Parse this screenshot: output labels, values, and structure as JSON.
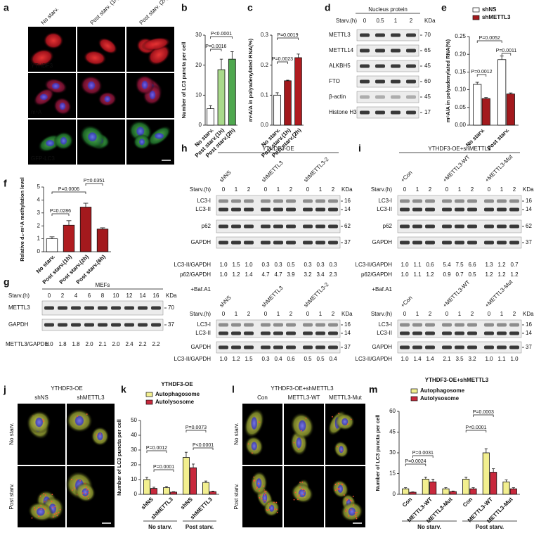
{
  "panel_labels": [
    "a",
    "b",
    "c",
    "d",
    "e",
    "f",
    "g",
    "h",
    "i",
    "j",
    "k",
    "l",
    "m"
  ],
  "panel_a": {
    "columns": [
      "No starv.",
      "Post starv. (1h)",
      "Post starv. (2h)"
    ],
    "rows": [
      "YTHDF3",
      "m⁶A",
      "GFP-LC3"
    ]
  },
  "chart_data": [
    {
      "type": "bar",
      "y_label": "Number of LC3 puncta per cell",
      "categories": [
        "No starv.",
        "Post starv.(1h)",
        "Post starv.(2h)"
      ],
      "series": [
        {
          "values": [
            5.5,
            18.5,
            22
          ],
          "errors": [
            1,
            3.5,
            2.5
          ],
          "colors": [
            "#ffffff",
            "#a9d98b",
            "#4fa84f"
          ]
        }
      ],
      "ylim": [
        0,
        30
      ],
      "yticks": [
        0,
        10,
        20,
        30
      ],
      "annotations": [
        "P=0.0016",
        "P<0.0001"
      ]
    },
    {
      "type": "bar",
      "y_label": "m⁶A/A in polyadenylated RNA(%)",
      "categories": [
        "No starv.",
        "Post starv.(1h)",
        "Post starv.(2h)"
      ],
      "series": [
        {
          "values": [
            0.1,
            0.148,
            0.225
          ],
          "errors": [
            0.008,
            0.002,
            0.012
          ],
          "colors": [
            "#ffffff",
            "#a3191d",
            "#b01c20"
          ]
        }
      ],
      "ylim": [
        0,
        0.3
      ],
      "yticks": [
        {
          "value": 0,
          "label": "0.0"
        },
        0.1,
        0.2,
        0.3
      ],
      "annotations": [
        "P=0.0023",
        "P=0.0019"
      ]
    },
    {
      "type": "bar",
      "y_label": "m⁶A/A in polyadenylated RNA(%)",
      "categories": [
        "No starv.",
        "Post starv."
      ],
      "series": [
        {
          "name": "shNS",
          "color": "#ffffff",
          "values": [
            0.115,
            0.185
          ],
          "errors": [
            0.006,
            0.01
          ]
        },
        {
          "name": "shMETTL3",
          "color": "#a3191d",
          "values": [
            0.075,
            0.088
          ],
          "errors": [
            0.003,
            0.003
          ]
        }
      ],
      "ylim": [
        0,
        0.25
      ],
      "yticks": [
        {
          "value": 0,
          "label": "0.00"
        },
        0.05,
        {
          "value": 0.1,
          "label": "0.10"
        },
        0.15,
        {
          "value": 0.2,
          "label": "0.20"
        },
        0.25
      ],
      "annotations": [
        "P=0.0012",
        "P=0.0052",
        "P=0.0011"
      ]
    },
    {
      "type": "bar",
      "y_label": "Relative d₃-m⁶A methylation level",
      "categories": [
        "No starv.",
        "Post starv.(1h)",
        "Post starv.(2h)",
        "Post starv.(6h)"
      ],
      "series": [
        {
          "values": [
            1.0,
            2.05,
            3.45,
            1.75
          ],
          "errors": [
            0.15,
            0.35,
            0.3,
            0.1
          ],
          "colors": [
            "#ffffff",
            "#b01c20",
            "#a3191d",
            "#a3191d"
          ]
        }
      ],
      "ylim": [
        0,
        5
      ],
      "yticks": [
        0,
        1,
        2,
        3,
        4,
        5
      ],
      "annotations": [
        "P=0.0286",
        "P=0.0006",
        "P=0.0351"
      ]
    },
    {
      "type": "bar",
      "title": "YTHDF3-OE",
      "y_label": "Number of LC3 puncta per cell",
      "categories": [
        "shNS",
        "shMETTL3",
        "shNS",
        "shMETTL3"
      ],
      "groups": [
        "No starv.",
        "Post starv."
      ],
      "series": [
        {
          "name": "Autophagosome",
          "color": "#f2ef8f",
          "values": [
            10,
            4.5,
            25,
            8
          ],
          "errors": [
            1.5,
            0.8,
            3.5,
            1
          ]
        },
        {
          "name": "Autolysosome",
          "color": "#c8283c",
          "values": [
            4,
            1.5,
            18,
            1.8
          ],
          "errors": [
            0.8,
            0.3,
            2.5,
            0.4
          ]
        }
      ],
      "ylim": [
        0,
        50
      ],
      "yticks": [
        0,
        10,
        20,
        30,
        40,
        50
      ],
      "annotations": [
        "P=0.0012",
        "P=0.0001",
        "P=0.0073",
        "P<0.0001"
      ]
    },
    {
      "type": "bar",
      "title": "YTHDF3-OE+shMETTL3",
      "y_label": "Number of LC3 puncta per cell",
      "categories": [
        "Con",
        "METTL3-WT",
        "METTL3-Mut",
        "Con",
        "METTL3-WT",
        "METTL3-Mut"
      ],
      "groups": [
        "No starv.",
        "Post starv."
      ],
      "series": [
        {
          "name": "Autophagosome",
          "color": "#f2ef8f",
          "values": [
            4,
            11,
            4,
            11,
            30,
            9
          ],
          "errors": [
            0.8,
            1.5,
            0.8,
            1.5,
            3,
            1.5
          ]
        },
        {
          "name": "Autolysosome",
          "color": "#c8283c",
          "values": [
            1.5,
            9,
            2,
            4,
            16,
            4
          ],
          "errors": [
            0.3,
            2,
            0.4,
            0.8,
            2.5,
            0.8
          ]
        }
      ],
      "ylim": [
        0,
        60
      ],
      "yticks": [
        0,
        15,
        30,
        45,
        60
      ],
      "annotations": [
        "P=0.0024",
        "P=0.0031",
        "P<0.0001",
        "P=0.0003"
      ]
    }
  ],
  "panel_d": {
    "title": "Nucleus protein",
    "lane_label": "Starv.(h)",
    "lanes": [
      "0",
      "0.5",
      "1",
      "2"
    ],
    "unit": "KDa",
    "rows": [
      {
        "name": "METTL3",
        "kda": "70"
      },
      {
        "name": "METTL14",
        "kda": "65"
      },
      {
        "name": "ALKBH5",
        "kda": "45"
      },
      {
        "name": "FTO",
        "kda": "60"
      },
      {
        "name": "β-actin",
        "kda": "45"
      },
      {
        "name": "Histone H3",
        "kda": "17"
      }
    ]
  },
  "panel_g": {
    "title": "MEFs",
    "lane_label": "Starv.(h)",
    "lanes": [
      "0",
      "2",
      "4",
      "6",
      "8",
      "10",
      "12",
      "14",
      "16"
    ],
    "unit": "KDa",
    "rows": [
      {
        "name": "METTL3",
        "kda": "70"
      },
      {
        "name": "GAPDH",
        "kda": "37"
      }
    ],
    "quant": [
      {
        "label": "METTL3/GAPDH",
        "values": [
          "1.0",
          "1.8",
          "1.8",
          "2.0",
          "2.1",
          "2.0",
          "2.4",
          "2.2",
          "2.2"
        ]
      }
    ]
  },
  "panel_h": {
    "title": "YTHDF3-OE",
    "groups": [
      "shNS",
      "shMETTL3",
      "shMETTL3-2"
    ],
    "lane_label": "Starv.(h)",
    "lanes": [
      "0",
      "1",
      "2"
    ],
    "unit": "KDa",
    "rows": [
      {
        "name": "LC3-I",
        "kda": "16"
      },
      {
        "name": "LC3-II",
        "kda": "14"
      },
      {
        "name": "p62",
        "kda": "62"
      },
      {
        "name": "GAPDH",
        "kda": "37"
      }
    ],
    "quant": [
      {
        "label": "LC3-II/GAPDH",
        "values": [
          "1.0",
          "1.5",
          "1.0",
          "0.3",
          "0.3",
          "0.5",
          "0.3",
          "0.3",
          "0.3"
        ]
      },
      {
        "label": "p62/GAPDH",
        "values": [
          "1.0",
          "1.2",
          "1.4",
          "4.7",
          "4.7",
          "3.9",
          "3.2",
          "3.4",
          "2.3"
        ]
      }
    ],
    "baf": {
      "label": "+Baf.A1",
      "rows": [
        {
          "name": "LC3-I",
          "kda": "16"
        },
        {
          "name": "LC3-II",
          "kda": "14"
        },
        {
          "name": "GAPDH",
          "kda": "37"
        }
      ],
      "quant": [
        {
          "label": "LC3-II/GAPDH",
          "values": [
            "1.0",
            "1.2",
            "1.5",
            "0.3",
            "0.4",
            "0.6",
            "0.5",
            "0.5",
            "0.4"
          ]
        }
      ]
    }
  },
  "panel_i": {
    "title": "YTHDF3-OE+shMETTL3",
    "groups": [
      "+Con",
      "+METTL3-WT",
      "+METTL3-Mut"
    ],
    "lane_label": "Starv.(h)",
    "lanes": [
      "0",
      "1",
      "2"
    ],
    "unit": "KDa",
    "rows": [
      {
        "name": "LC3-I",
        "kda": "16"
      },
      {
        "name": "LC3-II",
        "kda": "14"
      },
      {
        "name": "p62",
        "kda": "62"
      },
      {
        "name": "GAPDH",
        "kda": "37"
      }
    ],
    "quant": [
      {
        "label": "LC3-II/GAPDH",
        "values": [
          "1.0",
          "1.1",
          "0.6",
          "5.4",
          "7.5",
          "6.6",
          "1.3",
          "1.2",
          "0.7"
        ]
      },
      {
        "label": "p62/GAPDH",
        "values": [
          "1.0",
          "1.1",
          "1.2",
          "0.9",
          "0.7",
          "0.5",
          "1.2",
          "1.2",
          "1.2"
        ]
      }
    ],
    "baf": {
      "label": "+Baf.A1",
      "rows": [
        {
          "name": "LC3-I",
          "kda": "16"
        },
        {
          "name": "LC3-II",
          "kda": "14"
        },
        {
          "name": "GAPDH",
          "kda": "37"
        }
      ],
      "quant": [
        {
          "label": "LC3-II/GAPDH",
          "values": [
            "1.0",
            "1.4",
            "1.4",
            "2.1",
            "3.5",
            "3.2",
            "1.0",
            "1.1",
            "1.0"
          ]
        }
      ]
    }
  },
  "panel_j": {
    "title": "YTHDF3-OE",
    "columns": [
      "shNS",
      "shMETTL3"
    ],
    "rows": [
      "No starv.",
      "Post starv."
    ]
  },
  "panel_l": {
    "title": "YTHDF3-OE+shMETTL3",
    "columns": [
      "Con",
      "METTL3-WT",
      "METTL3-Mut"
    ],
    "rows": [
      "No starv.",
      "Post starv."
    ]
  }
}
